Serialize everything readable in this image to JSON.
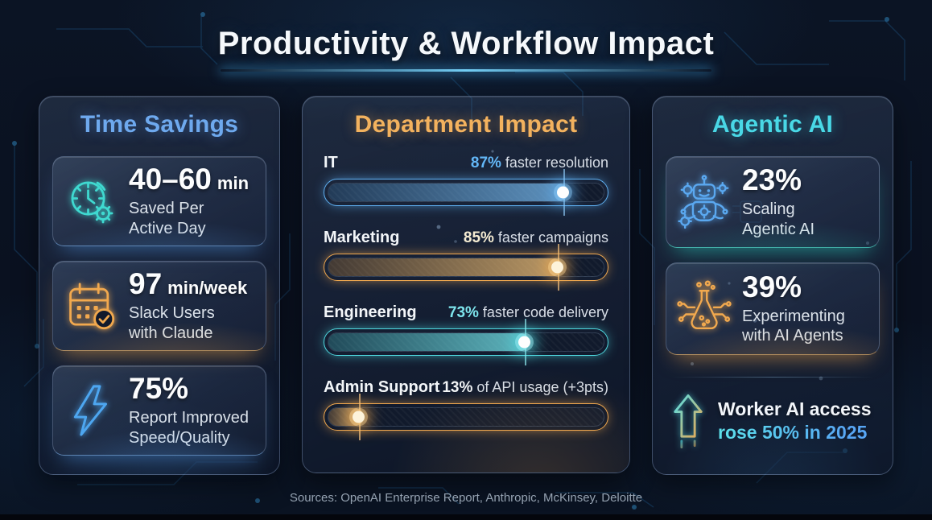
{
  "title": "Productivity & Workflow Impact",
  "footer": {
    "sources": "Sources: OpenAI Enterprise Report, Anthropic, McKinsey, Deloitte"
  },
  "panels": {
    "time_savings": {
      "heading": "Time Savings",
      "accent_color": "#6EA9EE",
      "cards": [
        {
          "icon": "clock-gear-icon",
          "icon_color": "#3FD9D0",
          "value": "40–60",
          "unit": "min",
          "label_line1": "Saved Per",
          "label_line2": "Active Day",
          "glow_color": "#5AA0EB"
        },
        {
          "icon": "calendar-check-icon",
          "icon_color": "#F2A94E",
          "value": "97",
          "unit": "min/week",
          "label_line1": "Slack Users",
          "label_line2": "with Claude",
          "glow_color": "#F0A84F"
        },
        {
          "icon": "lightning-icon",
          "icon_color": "#4DA6F0",
          "value": "75%",
          "unit": "",
          "label_line1": "Report Improved",
          "label_line2": "Speed/Quality",
          "glow_color": "#5AA0EB"
        }
      ]
    },
    "department_impact": {
      "heading": "Department Impact",
      "accent_color": "#F3B25E",
      "rows": [
        {
          "department": "IT",
          "percent": "87%",
          "percent_value": 87,
          "description": "faster resolution",
          "bar_color": "#5FB0F2",
          "percent_color": "#63B7F7"
        },
        {
          "department": "Marketing",
          "percent": "85%",
          "percent_value": 85,
          "description": "faster campaigns",
          "bar_color": "#F0A84F",
          "percent_color": "#F5ECD2"
        },
        {
          "department": "Engineering",
          "percent": "73%",
          "percent_value": 73,
          "description": "faster code delivery",
          "bar_color": "#4FD9E0",
          "percent_color": "#7DE4EC"
        },
        {
          "department": "Admin Support",
          "percent": "13%",
          "percent_value": 13,
          "description": "of API usage (+3pts)",
          "bar_color": "#F0A84F",
          "percent_color": "#F2F4F6"
        }
      ]
    },
    "agentic_ai": {
      "heading": "Agentic AI",
      "accent_color": "#49D8E6",
      "cards": [
        {
          "icon": "robot-icon",
          "icon_color": "#5AA8F0",
          "value": "23%",
          "unit": "",
          "label_line1": "Scaling",
          "label_line2": "Agentic AI",
          "glow_color": "#2FD8C8"
        },
        {
          "icon": "flask-circuit-icon",
          "icon_color": "#F2A94E",
          "value": "39%",
          "unit": "",
          "label_line1": "Experimenting",
          "label_line2": "with AI Agents",
          "glow_color": "#F0A84F"
        }
      ],
      "highlight": {
        "icon": "arrow-up-icon",
        "line1": "Worker AI access",
        "line2": "rose 50% in 2025",
        "line2_colors": [
          "#5CE2EA",
          "#58A6F5"
        ]
      }
    }
  },
  "chart_data": [
    {
      "type": "bar",
      "title": "Department Impact",
      "orientation": "horizontal",
      "categories": [
        "IT",
        "Marketing",
        "Engineering",
        "Admin Support"
      ],
      "values": [
        87,
        85,
        73,
        13
      ],
      "data_labels": [
        "87% faster resolution",
        "85% faster campaigns",
        "73% faster code delivery",
        "13% of API usage (+3pts)"
      ],
      "xlim": [
        0,
        100
      ],
      "colors": [
        "#5FB0F2",
        "#F0A84F",
        "#4FD9E0",
        "#F0A84F"
      ],
      "grid": false,
      "legend": false
    },
    {
      "type": "table",
      "title": "Time Savings",
      "rows": [
        [
          "40–60 min",
          "Saved Per Active Day"
        ],
        [
          "97 min/week",
          "Slack Users with Claude"
        ],
        [
          "75%",
          "Report Improved Speed/Quality"
        ]
      ]
    },
    {
      "type": "table",
      "title": "Agentic AI",
      "rows": [
        [
          "23%",
          "Scaling Agentic AI"
        ],
        [
          "39%",
          "Experimenting with AI Agents"
        ],
        [
          "+50%",
          "Worker AI access rose 50% in 2025"
        ]
      ]
    }
  ]
}
